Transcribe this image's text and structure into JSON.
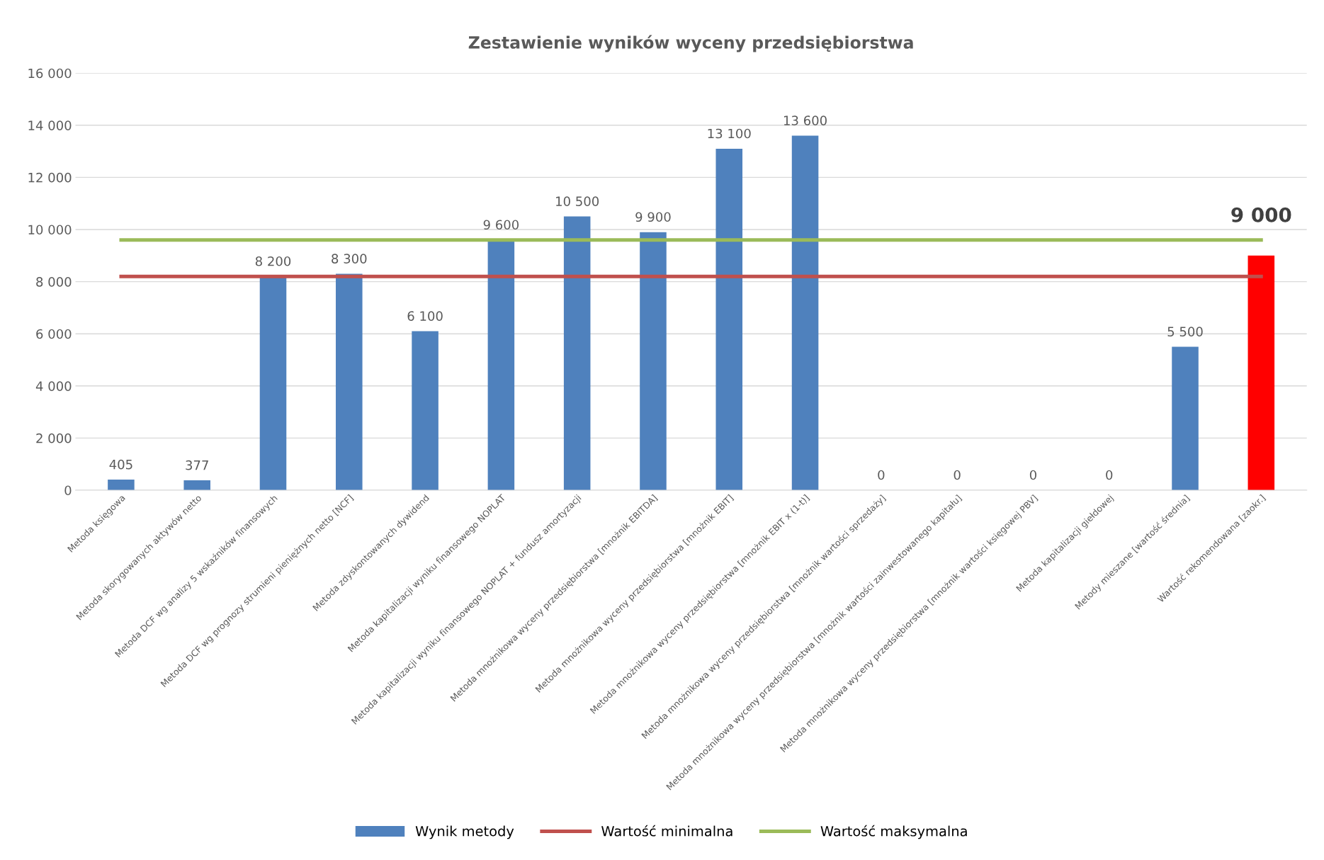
{
  "chart_data": {
    "type": "bar",
    "title": "Zestawienie wyników wyceny przedsiębiorstwa",
    "categories": [
      "Metoda księgowa",
      "Metoda skorygowanych aktywów netto",
      "Metoda DCF wg analizy 5 wskaźników finansowych",
      "Metoda DCF wg prognozy strumieni pieniężnych netto [NCF]",
      "Metoda zdyskontowanych dywidend",
      "Metoda kapitalizacji wyniku finansowego NOPLAT",
      "Metoda kapitalizacji wyniku finansowego NOPLAT + fundusz amortyzacji",
      "Metoda mnożnikowa wyceny przedsiębiorstwa [mnożnik EBITDA]",
      "Metoda mnożnikowa wyceny przedsiębiorstwa [mnożnik EBIT]",
      "Metoda mnożnikowa wyceny przedsiębiorstwa [mnożnik EBIT x (1-t)]",
      "Metoda mnożnikowa wyceny przedsiębiorstwa [mnożnik wartości sprzedaży]",
      "Metoda mnożnikowa wyceny przedsiębiorstwa [mnożnik wartości zainwestowanego kapitału]",
      "Metoda mnożnikowa wyceny przedsiębiorstwa [mnożnik wartości księgowej PBV]",
      "Metoda kapitalizacji giełdowej",
      "Metody mieszane [wartość średnia]",
      "Wartość rekomendowana [zaokr.]"
    ],
    "series": [
      {
        "name": "Wynik metody",
        "color": "#4f81bd",
        "colors": [
          "#4f81bd",
          "#4f81bd",
          "#4f81bd",
          "#4f81bd",
          "#4f81bd",
          "#4f81bd",
          "#4f81bd",
          "#4f81bd",
          "#4f81bd",
          "#4f81bd",
          "#4f81bd",
          "#4f81bd",
          "#4f81bd",
          "#4f81bd",
          "#4f81bd",
          "#ff0000"
        ],
        "values": [
          405,
          377,
          8200,
          8300,
          6100,
          9600,
          10500,
          9900,
          13100,
          13600,
          0,
          0,
          0,
          0,
          5500,
          9000
        ],
        "value_labels": [
          "405",
          "377",
          "8 200",
          "8 300",
          "6 100",
          "9 600",
          "10 500",
          "9 900",
          "13 100",
          "13 600",
          "0",
          "0",
          "0",
          "0",
          "5 500",
          "9 000"
        ]
      },
      {
        "name": "Wartość minimalna",
        "type": "line",
        "color": "#c0504d",
        "values": [
          8200,
          8200,
          8200,
          8200,
          8200,
          8200,
          8200,
          8200,
          8200,
          8200,
          8200,
          8200,
          8200,
          8200,
          8200,
          8200
        ]
      },
      {
        "name": "Wartość maksymalna",
        "type": "line",
        "color": "#9bbb59",
        "values": [
          9600,
          9600,
          9600,
          9600,
          9600,
          9600,
          9600,
          9600,
          9600,
          9600,
          9600,
          9600,
          9600,
          9600,
          9600,
          9600
        ]
      }
    ],
    "ylim": [
      0,
      16000
    ],
    "yticks": [
      {
        "value": 0,
        "label": "0"
      },
      {
        "value": 2000,
        "label": "2 000"
      },
      {
        "value": 4000,
        "label": "4 000"
      },
      {
        "value": 6000,
        "label": "6 000"
      },
      {
        "value": 8000,
        "label": "8 000"
      },
      {
        "value": 10000,
        "label": "10 000"
      },
      {
        "value": 12000,
        "label": "12 000"
      },
      {
        "value": 14000,
        "label": "14 000"
      },
      {
        "value": 16000,
        "label": "16 000"
      }
    ],
    "grid": "y",
    "legend": "bottom",
    "marker": "none",
    "line_style": "solid"
  }
}
